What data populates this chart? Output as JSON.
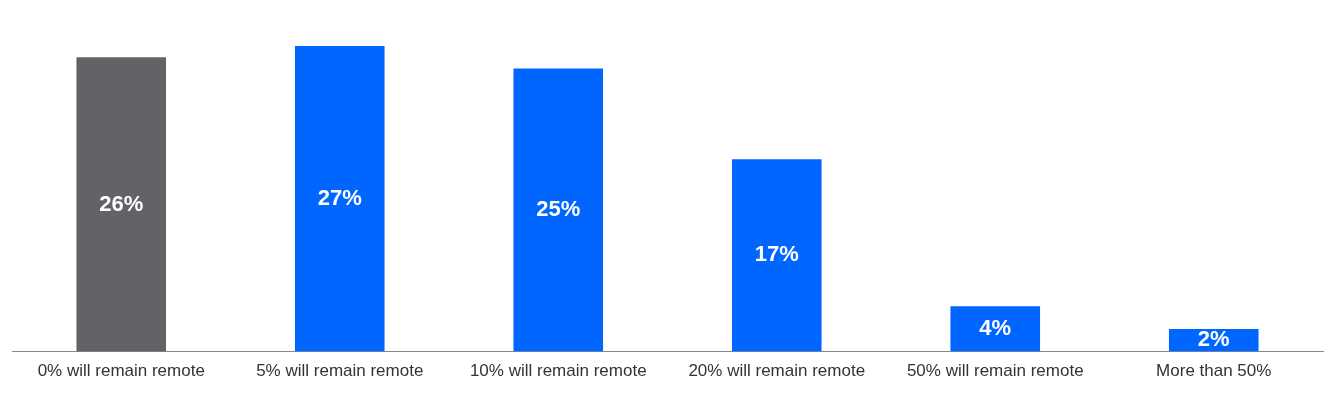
{
  "chart_data": {
    "type": "bar",
    "categories": [
      "0% will remain remote",
      "5% will remain remote",
      "10% will remain remote",
      "20% will remain remote",
      "50% will remain remote",
      "More than 50%"
    ],
    "values": [
      26,
      27,
      25,
      17,
      4,
      2
    ],
    "colors": [
      "#636266",
      "#0066ff",
      "#0066ff",
      "#0066ff",
      "#0066ff",
      "#0066ff"
    ],
    "value_labels": [
      "26%",
      "27%",
      "25%",
      "17%",
      "4%",
      "2%"
    ],
    "grid": false,
    "legend": false
  }
}
